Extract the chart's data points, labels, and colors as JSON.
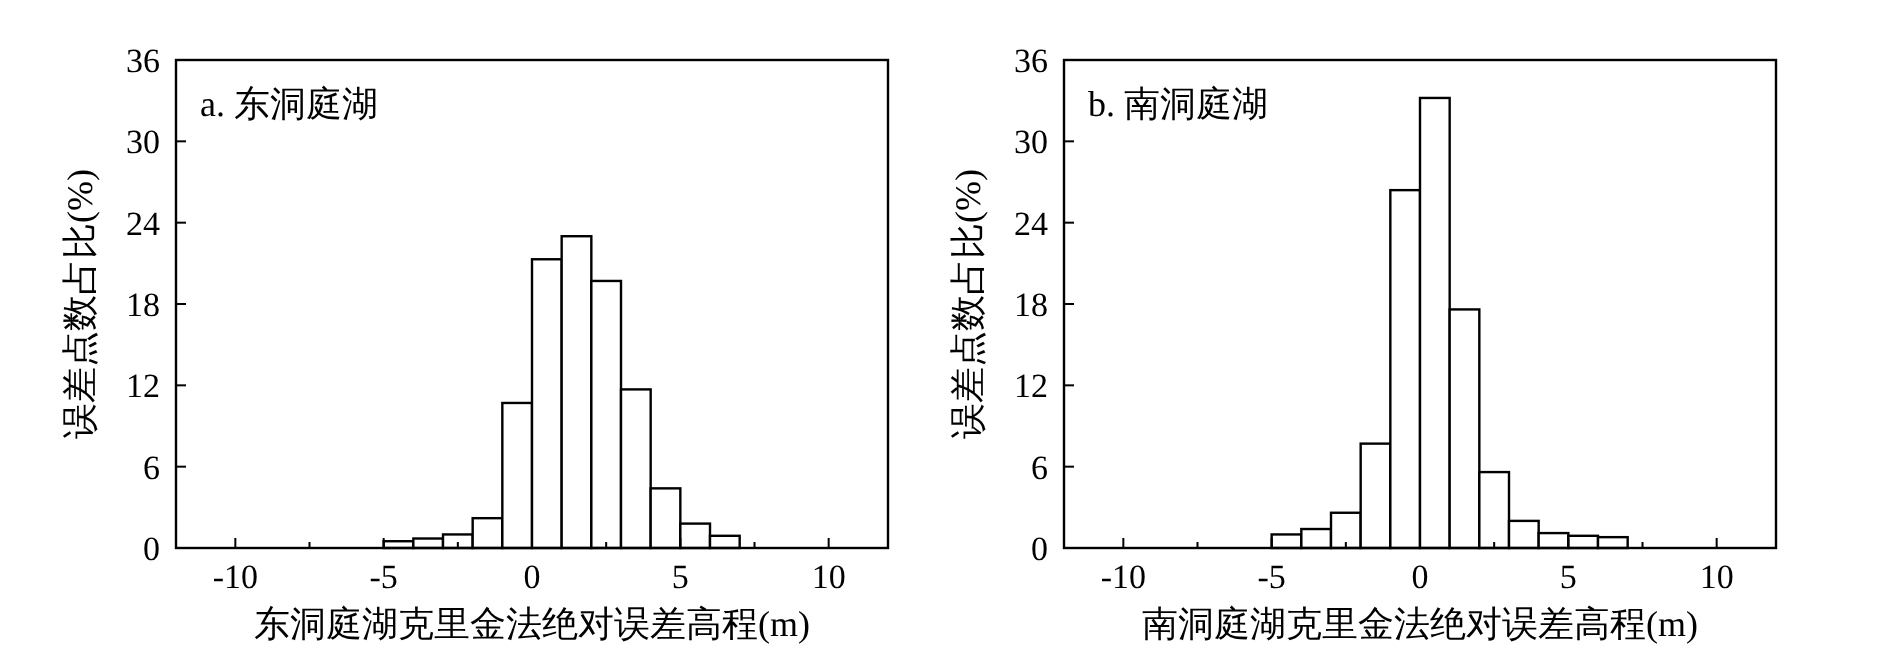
{
  "chart_data": [
    {
      "type": "histogram",
      "title": "a. 东洞庭湖",
      "xlabel": "东洞庭湖克里金法绝对误差高程(m)",
      "ylabel": "误差点数占比(%)",
      "bins": [
        -5,
        -4,
        -3,
        -2,
        -1,
        0,
        1,
        2,
        3,
        4,
        5,
        6,
        7
      ],
      "values": [
        0.5,
        0.7,
        1.0,
        2.2,
        10.7,
        21.3,
        23.0,
        19.7,
        11.7,
        4.4,
        1.8,
        0.9
      ],
      "color": "#ffffff",
      "xlim": [
        -12,
        12
      ],
      "xticks": [
        -10,
        {
          "value": -7.5,
          "label": null
        },
        -5,
        {
          "value": -2.5,
          "label": null
        },
        0,
        {
          "value": 2.5,
          "label": null
        },
        5,
        {
          "value": 7.5,
          "label": null
        },
        10
      ],
      "ylim": [
        0,
        36
      ],
      "yticks": [
        0,
        6,
        12,
        18,
        24,
        30,
        36
      ],
      "grid": false
    },
    {
      "type": "histogram",
      "title": "b. 南洞庭湖",
      "xlabel": "南洞庭湖克里金法绝对误差高程(m)",
      "ylabel": "误差点数占比(%)",
      "bins": [
        -5,
        -4,
        -3,
        -2,
        -1,
        0,
        1,
        2,
        3,
        4,
        5,
        6,
        7
      ],
      "values": [
        1.0,
        1.4,
        2.6,
        7.7,
        26.4,
        33.2,
        17.6,
        5.6,
        2.0,
        1.1,
        0.9,
        0.8
      ],
      "color": "#ffffff",
      "xlim": [
        -12,
        12
      ],
      "xticks": [
        -10,
        {
          "value": -7.5,
          "label": null
        },
        -5,
        {
          "value": -2.5,
          "label": null
        },
        0,
        {
          "value": 2.5,
          "label": null
        },
        5,
        {
          "value": 7.5,
          "label": null
        },
        10
      ],
      "ylim": [
        0,
        36
      ],
      "yticks": [
        0,
        6,
        12,
        18,
        24,
        30,
        36
      ],
      "grid": false
    }
  ]
}
